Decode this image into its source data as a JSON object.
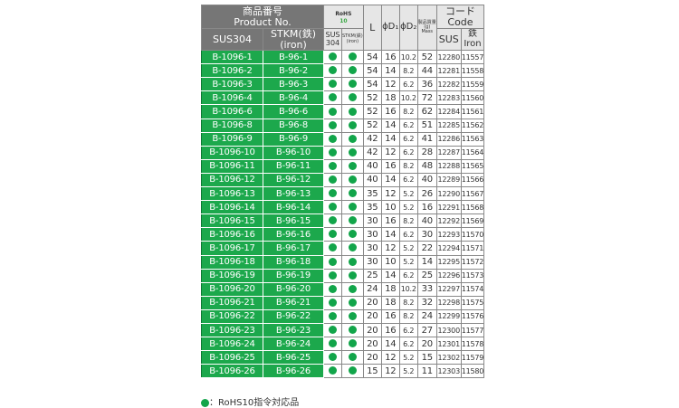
{
  "header": {
    "product_no_jp": "商品番号",
    "product_no_en": "Product No.",
    "sus304": "SUS304",
    "stkm": "STKM(鉄)",
    "stkm_en": "(iron)",
    "rohs": "RoHS",
    "rohs10": "10",
    "rohs_sus": "SUS",
    "rohs_sus2": "304",
    "rohs_iron": "STKM(鉄)",
    "rohs_iron2": "(iron)",
    "L": "L",
    "D1": "ϕD₁",
    "D2": "ϕD₂",
    "mass_jp": "製品質量",
    "mass_g": "(g)",
    "mass_en": "Mass",
    "code_jp": "コード",
    "code_en": "Code",
    "code_sus": "SUS",
    "code_iron_jp": "鉄",
    "code_iron_en": "Iron"
  },
  "colors": {
    "green": "#1ca84c",
    "header_dark": "#767676",
    "header_light": "#e6e6e6"
  },
  "rows": [
    [
      "B-1096-1",
      "B-96-1",
      "54",
      "16",
      "10.2",
      "52",
      "12280",
      "11557"
    ],
    [
      "B-1096-2",
      "B-96-2",
      "54",
      "14",
      "8.2",
      "44",
      "12281",
      "11558"
    ],
    [
      "B-1096-3",
      "B-96-3",
      "54",
      "12",
      "6.2",
      "36",
      "12282",
      "11559"
    ],
    [
      "B-1096-4",
      "B-96-4",
      "52",
      "18",
      "10.2",
      "72",
      "12283",
      "11560"
    ],
    [
      "B-1096-6",
      "B-96-6",
      "52",
      "16",
      "8.2",
      "62",
      "12284",
      "11561"
    ],
    [
      "B-1096-8",
      "B-96-8",
      "52",
      "14",
      "6.2",
      "51",
      "12285",
      "11562"
    ],
    [
      "B-1096-9",
      "B-96-9",
      "42",
      "14",
      "6.2",
      "41",
      "12286",
      "11563"
    ],
    [
      "B-1096-10",
      "B-96-10",
      "42",
      "12",
      "6.2",
      "28",
      "12287",
      "11564"
    ],
    [
      "B-1096-11",
      "B-96-11",
      "40",
      "16",
      "8.2",
      "48",
      "12288",
      "11565"
    ],
    [
      "B-1096-12",
      "B-96-12",
      "40",
      "14",
      "6.2",
      "40",
      "12289",
      "11566"
    ],
    [
      "B-1096-13",
      "B-96-13",
      "35",
      "12",
      "5.2",
      "26",
      "12290",
      "11567"
    ],
    [
      "B-1096-14",
      "B-96-14",
      "35",
      "10",
      "5.2",
      "16",
      "12291",
      "11568"
    ],
    [
      "B-1096-15",
      "B-96-15",
      "30",
      "16",
      "8.2",
      "40",
      "12292",
      "11569"
    ],
    [
      "B-1096-16",
      "B-96-16",
      "30",
      "14",
      "6.2",
      "30",
      "12293",
      "11570"
    ],
    [
      "B-1096-17",
      "B-96-17",
      "30",
      "12",
      "5.2",
      "22",
      "12294",
      "11571"
    ],
    [
      "B-1096-18",
      "B-96-18",
      "30",
      "10",
      "5.2",
      "14",
      "12295",
      "11572"
    ],
    [
      "B-1096-19",
      "B-96-19",
      "25",
      "14",
      "6.2",
      "25",
      "12296",
      "11573"
    ],
    [
      "B-1096-20",
      "B-96-20",
      "24",
      "18",
      "10.2",
      "33",
      "12297",
      "11574"
    ],
    [
      "B-1096-21",
      "B-96-21",
      "20",
      "18",
      "8.2",
      "32",
      "12298",
      "11575"
    ],
    [
      "B-1096-22",
      "B-96-22",
      "20",
      "16",
      "8.2",
      "24",
      "12299",
      "11576"
    ],
    [
      "B-1096-23",
      "B-96-23",
      "20",
      "16",
      "6.2",
      "27",
      "12300",
      "11577"
    ],
    [
      "B-1096-24",
      "B-96-24",
      "20",
      "14",
      "6.2",
      "20",
      "12301",
      "11578"
    ],
    [
      "B-1096-25",
      "B-96-25",
      "20",
      "12",
      "5.2",
      "15",
      "12302",
      "11579"
    ],
    [
      "B-1096-26",
      "B-96-26",
      "15",
      "12",
      "5.2",
      "11",
      "12303",
      "11580"
    ]
  ],
  "rohs_marks": "●",
  "footer": "：RoHS10指令対応品"
}
